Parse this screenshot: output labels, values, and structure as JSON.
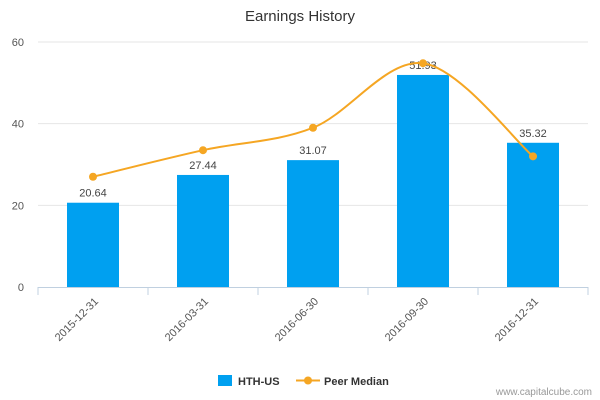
{
  "chart_data": {
    "type": "bar",
    "title": "Earnings History",
    "xlabel": "",
    "ylabel": "",
    "ylim": [
      0,
      60
    ],
    "yticks": [
      "0",
      "20",
      "40",
      "60"
    ],
    "categories": [
      "2015-12-31",
      "2016-03-31",
      "2016-06-30",
      "2016-09-30",
      "2016-12-31"
    ],
    "series": [
      {
        "name": "HTH-US",
        "kind": "bar",
        "values": [
          20.64,
          27.44,
          31.07,
          51.93,
          35.32
        ],
        "labels": [
          "20.64",
          "27.44",
          "31.07",
          "51.93",
          "35.32"
        ],
        "color": "#00a0f0"
      },
      {
        "name": "Peer Median",
        "kind": "line",
        "values": [
          27.0,
          33.5,
          39.0,
          54.8,
          32.0
        ],
        "color": "#f5a623"
      }
    ],
    "legend": "bottom-center",
    "credit": "www.capitalcube.com"
  }
}
